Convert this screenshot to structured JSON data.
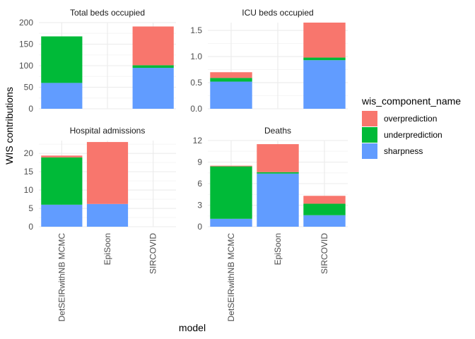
{
  "chart_data": {
    "type": "bar",
    "stacked": true,
    "faceted": true,
    "xlabel": "model",
    "ylabel": "WIS contributions",
    "categories": [
      "DetSEIRwithNB MCMC",
      "EpiSoon",
      "SIRCOVID"
    ],
    "legend": {
      "title": "wis_component_name",
      "position": "right",
      "entries": [
        "overprediction",
        "underprediction",
        "sharpness"
      ]
    },
    "colors": {
      "overprediction": "#F8766D",
      "underprediction": "#00BA38",
      "sharpness": "#619CFF",
      "grid_major": "#ebebeb",
      "grid_minor": "#f5f5f5"
    },
    "grid": true,
    "panels": [
      {
        "title": "Total beds occupied",
        "ylim": [
          0,
          200
        ],
        "yticks": [
          "0",
          "50",
          "100",
          "150",
          "200"
        ],
        "series": [
          {
            "name": "sharpness",
            "values": [
              60,
              null,
              95
            ]
          },
          {
            "name": "underprediction",
            "values": [
              108,
              null,
              6
            ]
          },
          {
            "name": "overprediction",
            "values": [
              0,
              null,
              90
            ]
          }
        ]
      },
      {
        "title": "ICU beds occupied",
        "ylim": [
          0,
          1.65
        ],
        "yticks": [
          "0.0",
          "0.5",
          "1.0",
          "1.5"
        ],
        "series": [
          {
            "name": "sharpness",
            "values": [
              0.52,
              null,
              0.93
            ]
          },
          {
            "name": "underprediction",
            "values": [
              0.07,
              null,
              0.05
            ]
          },
          {
            "name": "overprediction",
            "values": [
              0.11,
              null,
              0.67
            ]
          }
        ]
      },
      {
        "title": "Hospital admissions",
        "ylim": [
          0,
          23.5
        ],
        "yticks": [
          "0",
          "5",
          "10",
          "15",
          "20"
        ],
        "series": [
          {
            "name": "sharpness",
            "values": [
              6,
              6.2,
              null
            ]
          },
          {
            "name": "underprediction",
            "values": [
              12.9,
              0,
              null
            ]
          },
          {
            "name": "overprediction",
            "values": [
              0.5,
              16.9,
              null
            ]
          }
        ]
      },
      {
        "title": "Deaths",
        "ylim": [
          0,
          12
        ],
        "yticks": [
          "0",
          "3",
          "6",
          "9",
          "12"
        ],
        "series": [
          {
            "name": "sharpness",
            "values": [
              1.1,
              7.4,
              1.6
            ]
          },
          {
            "name": "underprediction",
            "values": [
              7.3,
              0.2,
              1.6
            ]
          },
          {
            "name": "overprediction",
            "values": [
              0.1,
              3.9,
              1.1
            ]
          }
        ]
      }
    ]
  }
}
